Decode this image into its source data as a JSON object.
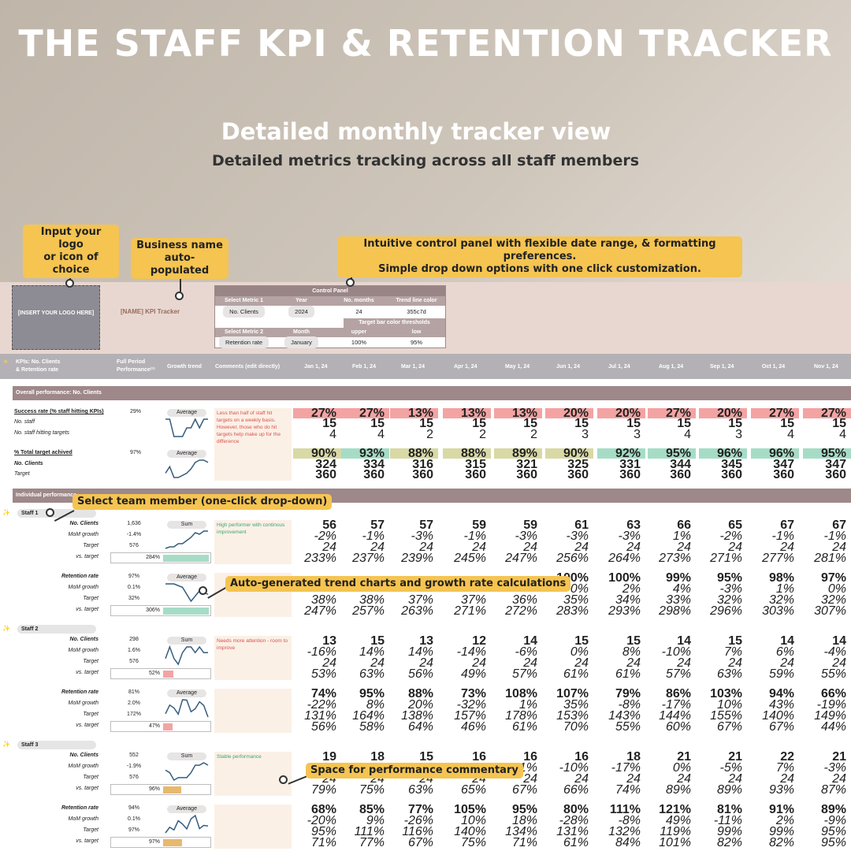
{
  "hero": {
    "title": "THE STAFF KPI & RETENTION TRACKER",
    "subtitle": "Detailed monthly tracker view",
    "subtitle2": "Detailed metrics tracking across all staff members"
  },
  "callouts": {
    "logo": "Input your logo\nor icon of choice",
    "business": "Business name\nauto-populated",
    "control": "Intuitive control panel with flexible date range, & formatting preferences.\nSimple drop down options with one click customization.",
    "select_member": "Select team member (one-click drop-down)",
    "trend": "Auto-generated trend charts and growth rate calculations",
    "commentary": "Space for performance commentary"
  },
  "logo_placeholder": "[INSERT YOUR LOGO HERE]",
  "business_name": "[NAME] KPI Tracker",
  "control_panel": {
    "title": "Control Panel",
    "row1_headers": [
      "Select Metric 1",
      "Year",
      "No. months",
      "Trend line color"
    ],
    "row1_values": [
      "No. Clients",
      "2024",
      "24",
      "355c7d"
    ],
    "thresholds_label": "Target bar color thresholds",
    "row2_headers": [
      "Select Metric 2",
      "Month",
      "upper",
      "low"
    ],
    "row2_values": [
      "Retention rate",
      "January",
      "100%",
      "95%"
    ]
  },
  "columns": {
    "kpi_label": "KPIs: No. Clients\n& Retention rate",
    "full_period": "Full Period\nPerformance⁽¹⁾",
    "growth_trend": "Growth trend",
    "comments": "Comments (edit directly)",
    "months": [
      "Jan 1, 24",
      "Feb 1, 24",
      "Mar 1, 24",
      "Apr 1, 24",
      "May 1, 24",
      "Jun 1, 24",
      "Jul 1, 24",
      "Aug 1, 24",
      "Sep 1, 24",
      "Oct 1, 24",
      "Nov 1, 24"
    ]
  },
  "overall": {
    "section": "Overall performance: No. Clients",
    "success_label": "Success rate (% staff hitting KPIs)",
    "success_value": "29%",
    "success_tag": "Average",
    "success_row": [
      "27%",
      "27%",
      "13%",
      "13%",
      "13%",
      "20%",
      "20%",
      "27%",
      "20%",
      "27%",
      "27%"
    ],
    "no_staff_label": "No. staff",
    "no_staff_row": [
      "15",
      "15",
      "15",
      "15",
      "15",
      "15",
      "15",
      "15",
      "15",
      "15",
      "15"
    ],
    "hitting_label": "No. staff hitting targets",
    "hitting_row": [
      "4",
      "4",
      "2",
      "2",
      "2",
      "3",
      "3",
      "4",
      "3",
      "4",
      "4"
    ],
    "comment": "Less than half of staff hit targets on a weekly basis. However, those who do hit targets help make up for the difference",
    "total_label": "% Total target achived",
    "total_value": "97%",
    "total_tag": "Average",
    "total_row": [
      "90%",
      "93%",
      "88%",
      "88%",
      "89%",
      "90%",
      "92%",
      "95%",
      "96%",
      "96%",
      "95%"
    ],
    "clients_label": "No. Clients",
    "clients_row": [
      "324",
      "334",
      "316",
      "315",
      "321",
      "325",
      "331",
      "344",
      "345",
      "347",
      "347"
    ],
    "target_label": "Target",
    "target_row": [
      "360",
      "360",
      "360",
      "360",
      "360",
      "360",
      "360",
      "360",
      "360",
      "360",
      "360"
    ]
  },
  "individual": {
    "section": "Individual performance",
    "row_labels": [
      "No. Clients",
      "MoM growth",
      "Target",
      "vs. target"
    ],
    "ret_labels": [
      "Retention rate",
      "MoM growth",
      "Target",
      "vs. target"
    ],
    "staff": [
      {
        "name": "Staff 1",
        "comment": "High performer with continous improvement",
        "clients": {
          "values": [
            "1,636",
            "-1.4%",
            "576",
            "284%"
          ],
          "tag": "Sum",
          "rows": [
            [
              "56",
              "57",
              "57",
              "59",
              "59",
              "61",
              "63",
              "66",
              "65",
              "67",
              "67"
            ],
            [
              "-2%",
              "-1%",
              "-3%",
              "-1%",
              "-3%",
              "-3%",
              "-3%",
              "1%",
              "-2%",
              "-1%",
              "-1%"
            ],
            [
              "24",
              "24",
              "24",
              "24",
              "24",
              "24",
              "24",
              "24",
              "24",
              "24",
              "24"
            ],
            [
              "233%",
              "237%",
              "239%",
              "245%",
              "247%",
              "256%",
              "264%",
              "273%",
              "271%",
              "277%",
              "281%"
            ]
          ]
        },
        "retention": {
          "values": [
            "97%",
            "0.1%",
            "32%",
            "306%"
          ],
          "tag": "Average",
          "rows": [
            [
              "",
              "",
              "",
              "",
              "",
              "100%",
              "100%",
              "99%",
              "95%",
              "98%",
              "97%"
            ],
            [
              "",
              "",
              "",
              "",
              "",
              "0%",
              "2%",
              "4%",
              "-3%",
              "1%",
              "0%"
            ],
            [
              "38%",
              "38%",
              "37%",
              "37%",
              "36%",
              "35%",
              "34%",
              "33%",
              "32%",
              "32%",
              "32%"
            ],
            [
              "247%",
              "257%",
              "263%",
              "271%",
              "272%",
              "283%",
              "293%",
              "298%",
              "296%",
              "303%",
              "307%"
            ]
          ]
        }
      },
      {
        "name": "Staff 2",
        "comment": "Needs more attention - room to improve",
        "clients": {
          "values": [
            "298",
            "1.6%",
            "576",
            "52%"
          ],
          "tag": "Sum",
          "rows": [
            [
              "13",
              "15",
              "13",
              "12",
              "14",
              "15",
              "15",
              "14",
              "15",
              "14",
              "14"
            ],
            [
              "-16%",
              "14%",
              "14%",
              "-14%",
              "-6%",
              "0%",
              "8%",
              "-10%",
              "7%",
              "6%",
              "-4%"
            ],
            [
              "24",
              "24",
              "24",
              "24",
              "24",
              "24",
              "24",
              "24",
              "24",
              "24",
              "24"
            ],
            [
              "53%",
              "63%",
              "56%",
              "49%",
              "57%",
              "61%",
              "61%",
              "57%",
              "63%",
              "59%",
              "55%"
            ]
          ]
        },
        "retention": {
          "values": [
            "81%",
            "2.0%",
            "172%",
            "47%"
          ],
          "tag": "Average",
          "rows": [
            [
              "74%",
              "95%",
              "88%",
              "73%",
              "108%",
              "107%",
              "79%",
              "86%",
              "103%",
              "94%",
              "66%"
            ],
            [
              "-22%",
              "8%",
              "20%",
              "-32%",
              "1%",
              "35%",
              "-8%",
              "-17%",
              "10%",
              "43%",
              "-19%"
            ],
            [
              "131%",
              "164%",
              "138%",
              "157%",
              "178%",
              "153%",
              "143%",
              "144%",
              "155%",
              "140%",
              "149%"
            ],
            [
              "56%",
              "58%",
              "64%",
              "46%",
              "61%",
              "70%",
              "55%",
              "60%",
              "67%",
              "67%",
              "44%"
            ]
          ]
        }
      },
      {
        "name": "Staff 3",
        "comment": "Stable performance",
        "clients": {
          "values": [
            "552",
            "-1.9%",
            "576",
            "96%"
          ],
          "tag": "Sum",
          "rows": [
            [
              "19",
              "18",
              "15",
              "16",
              "16",
              "16",
              "18",
              "21",
              "21",
              "22",
              "21"
            ],
            [
              "",
              "",
              "",
              "%",
              "1%",
              "-10%",
              "-17%",
              "0%",
              "-5%",
              "7%",
              "-3%"
            ],
            [
              "24",
              "24",
              "24",
              "24",
              "24",
              "24",
              "24",
              "24",
              "24",
              "24",
              "24"
            ],
            [
              "79%",
              "75%",
              "63%",
              "65%",
              "67%",
              "66%",
              "74%",
              "89%",
              "89%",
              "93%",
              "87%"
            ]
          ]
        },
        "retention": {
          "values": [
            "94%",
            "0.1%",
            "97%",
            "97%"
          ],
          "tag": "Average",
          "rows": [
            [
              "68%",
              "85%",
              "77%",
              "105%",
              "95%",
              "80%",
              "111%",
              "121%",
              "81%",
              "91%",
              "89%"
            ],
            [
              "-20%",
              "9%",
              "-26%",
              "10%",
              "18%",
              "-28%",
              "-8%",
              "49%",
              "-11%",
              "2%",
              "-9%"
            ],
            [
              "95%",
              "111%",
              "116%",
              "140%",
              "134%",
              "131%",
              "132%",
              "119%",
              "99%",
              "99%",
              "95%"
            ],
            [
              "71%",
              "77%",
              "67%",
              "75%",
              "71%",
              "61%",
              "84%",
              "101%",
              "82%",
              "82%",
              "95%"
            ]
          ]
        }
      }
    ]
  },
  "colors": {
    "red": "#f4a3a3",
    "green": "#a6dcc6",
    "orange": "#e8b86d",
    "olive": "#d8d9a5",
    "section": "#9e8889",
    "accent": "#f5c451",
    "trend": "#355c7d"
  }
}
